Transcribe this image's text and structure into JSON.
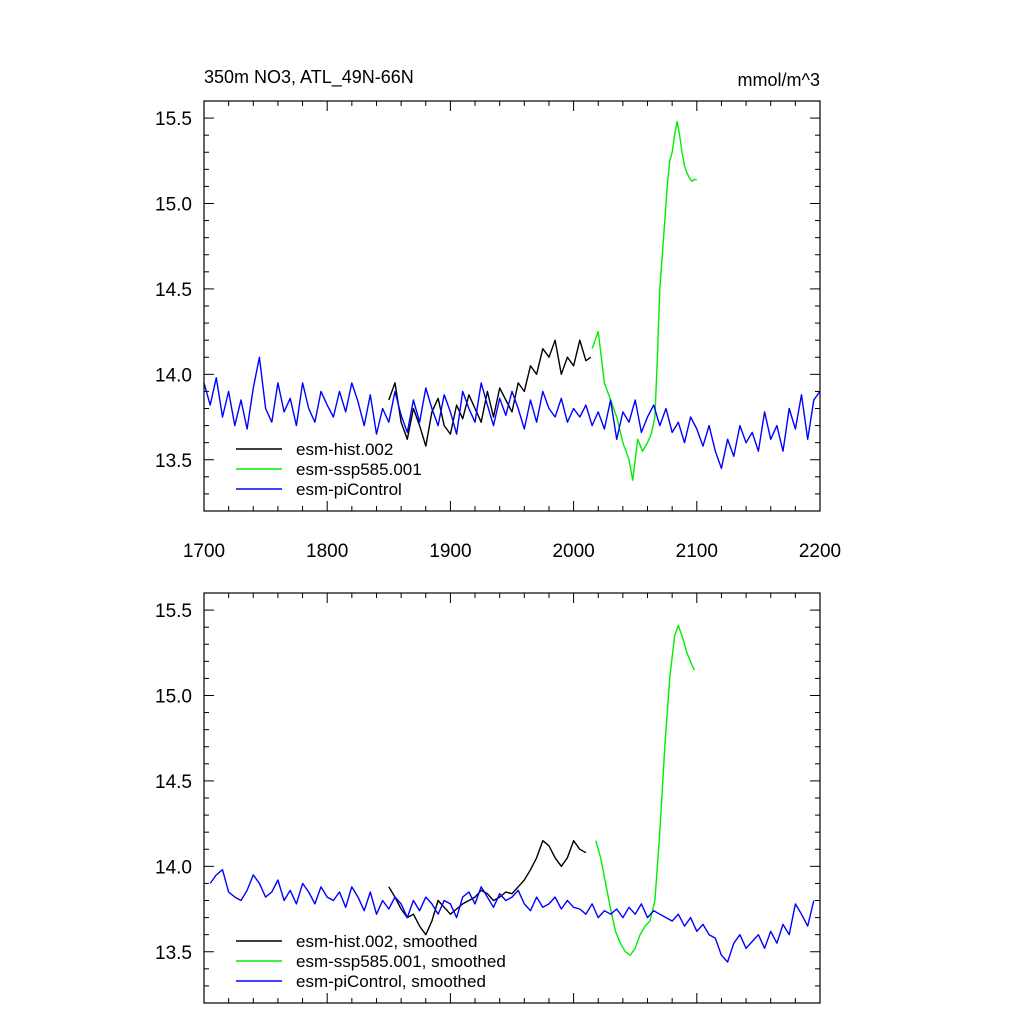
{
  "chart_data": [
    {
      "type": "line",
      "title": "350m NO3, ATL_49N-66N",
      "units": "mmol/m^3",
      "xlim": [
        1700,
        2200
      ],
      "ylim": [
        13.2,
        15.6
      ],
      "xticks": [
        1700,
        1800,
        1900,
        2000,
        2100,
        2200
      ],
      "xtick_labels": [
        "1700",
        "1800",
        "1900",
        "2000",
        "2100",
        "2200"
      ],
      "yticks": [
        13.5,
        14.0,
        14.5,
        15.0,
        15.5
      ],
      "ytick_labels": [
        "13.5",
        "14.0",
        "14.5",
        "15.0",
        "15.5"
      ],
      "legend_position": "bottom-left",
      "series": [
        {
          "name": "esm-hist.002",
          "color": "#000000",
          "x": [
            1850,
            1855,
            1860,
            1865,
            1870,
            1875,
            1880,
            1885,
            1890,
            1895,
            1900,
            1905,
            1910,
            1915,
            1920,
            1925,
            1930,
            1935,
            1940,
            1945,
            1950,
            1955,
            1960,
            1965,
            1970,
            1975,
            1980,
            1985,
            1990,
            1995,
            2000,
            2005,
            2010,
            2014
          ],
          "y": [
            13.85,
            13.95,
            13.72,
            13.62,
            13.8,
            13.7,
            13.58,
            13.78,
            13.86,
            13.7,
            13.65,
            13.82,
            13.74,
            13.88,
            13.8,
            13.72,
            13.9,
            13.75,
            13.92,
            13.85,
            13.78,
            13.95,
            13.9,
            14.05,
            14.0,
            14.15,
            14.1,
            14.2,
            14.0,
            14.1,
            14.05,
            14.2,
            14.08,
            14.1
          ]
        },
        {
          "name": "esm-ssp585.001",
          "color": "#00ee00",
          "x": [
            2015,
            2020,
            2025,
            2030,
            2035,
            2040,
            2045,
            2048,
            2052,
            2056,
            2060,
            2063,
            2066,
            2068,
            2070,
            2072,
            2074,
            2076,
            2078,
            2080,
            2082,
            2084,
            2086,
            2088,
            2090,
            2092,
            2094,
            2096,
            2098,
            2100
          ],
          "y": [
            14.15,
            14.25,
            13.95,
            13.85,
            13.75,
            13.6,
            13.5,
            13.38,
            13.62,
            13.55,
            13.6,
            13.65,
            13.75,
            14.1,
            14.5,
            14.7,
            14.9,
            15.1,
            15.25,
            15.3,
            15.4,
            15.48,
            15.4,
            15.3,
            15.22,
            15.18,
            15.15,
            15.13,
            15.14,
            15.14
          ]
        },
        {
          "name": "esm-piControl",
          "color": "#0000ff",
          "x": [
            1700,
            1705,
            1710,
            1715,
            1720,
            1725,
            1730,
            1735,
            1740,
            1745,
            1750,
            1755,
            1760,
            1765,
            1770,
            1775,
            1780,
            1785,
            1790,
            1795,
            1800,
            1805,
            1810,
            1815,
            1820,
            1825,
            1830,
            1835,
            1840,
            1845,
            1850,
            1855,
            1860,
            1865,
            1870,
            1875,
            1880,
            1885,
            1890,
            1895,
            1900,
            1905,
            1910,
            1915,
            1920,
            1925,
            1930,
            1935,
            1940,
            1945,
            1950,
            1955,
            1960,
            1965,
            1970,
            1975,
            1980,
            1985,
            1990,
            1995,
            2000,
            2005,
            2010,
            2015,
            2020,
            2025,
            2030,
            2035,
            2040,
            2045,
            2050,
            2055,
            2060,
            2065,
            2070,
            2075,
            2080,
            2085,
            2090,
            2095,
            2100,
            2105,
            2110,
            2115,
            2120,
            2125,
            2130,
            2135,
            2140,
            2145,
            2150,
            2155,
            2160,
            2165,
            2170,
            2175,
            2180,
            2185,
            2190,
            2195,
            2200
          ],
          "y": [
            13.95,
            13.82,
            13.98,
            13.75,
            13.9,
            13.7,
            13.85,
            13.68,
            13.92,
            14.1,
            13.8,
            13.72,
            13.95,
            13.78,
            13.86,
            13.7,
            13.95,
            13.8,
            13.72,
            13.9,
            13.82,
            13.75,
            13.9,
            13.78,
            13.95,
            13.84,
            13.7,
            13.88,
            13.65,
            13.8,
            13.72,
            13.9,
            13.76,
            13.66,
            13.85,
            13.72,
            13.92,
            13.8,
            13.7,
            13.88,
            13.78,
            13.65,
            13.9,
            13.8,
            13.72,
            13.95,
            13.82,
            13.7,
            13.86,
            13.76,
            13.9,
            13.8,
            13.68,
            13.85,
            13.72,
            13.9,
            13.8,
            13.75,
            13.86,
            13.72,
            13.8,
            13.75,
            13.82,
            13.7,
            13.78,
            13.68,
            13.85,
            13.62,
            13.78,
            13.72,
            13.85,
            13.66,
            13.75,
            13.82,
            13.7,
            13.8,
            13.66,
            13.72,
            13.6,
            13.75,
            13.68,
            13.58,
            13.7,
            13.55,
            13.45,
            13.62,
            13.52,
            13.7,
            13.6,
            13.66,
            13.55,
            13.78,
            13.62,
            13.7,
            13.55,
            13.8,
            13.68,
            13.88,
            13.62,
            13.85,
            13.9
          ]
        }
      ]
    },
    {
      "type": "line",
      "xlim": [
        1700,
        2200
      ],
      "ylim": [
        13.2,
        15.6
      ],
      "xticks": [
        1700,
        1800,
        1900,
        2000,
        2100,
        2200
      ],
      "yticks": [
        13.5,
        14.0,
        14.5,
        15.0,
        15.5
      ],
      "ytick_labels": [
        "13.5",
        "14.0",
        "14.5",
        "15.0",
        "15.5"
      ],
      "legend_position": "bottom-left",
      "series": [
        {
          "name": "esm-hist.002, smoothed",
          "color": "#000000",
          "x": [
            1850,
            1855,
            1860,
            1865,
            1870,
            1875,
            1880,
            1885,
            1890,
            1895,
            1900,
            1905,
            1910,
            1915,
            1920,
            1925,
            1930,
            1935,
            1940,
            1945,
            1950,
            1955,
            1960,
            1965,
            1970,
            1975,
            1980,
            1985,
            1990,
            1995,
            2000,
            2005,
            2010
          ],
          "y": [
            13.88,
            13.82,
            13.75,
            13.7,
            13.72,
            13.65,
            13.6,
            13.68,
            13.8,
            13.76,
            13.72,
            13.75,
            13.78,
            13.8,
            13.82,
            13.86,
            13.84,
            13.8,
            13.82,
            13.85,
            13.84,
            13.88,
            13.92,
            13.98,
            14.05,
            14.15,
            14.12,
            14.05,
            14.0,
            14.05,
            14.15,
            14.1,
            14.08
          ]
        },
        {
          "name": "esm-ssp585.001, smoothed",
          "color": "#00ee00",
          "x": [
            2018,
            2022,
            2026,
            2030,
            2034,
            2038,
            2042,
            2046,
            2050,
            2054,
            2058,
            2062,
            2066,
            2070,
            2074,
            2078,
            2082,
            2085,
            2088,
            2092,
            2096,
            2098
          ],
          "y": [
            14.15,
            14.05,
            13.9,
            13.75,
            13.62,
            13.55,
            13.5,
            13.48,
            13.52,
            13.6,
            13.65,
            13.68,
            13.8,
            14.2,
            14.7,
            15.1,
            15.35,
            15.41,
            15.35,
            15.25,
            15.18,
            15.15
          ]
        },
        {
          "name": "esm-piControl, smoothed",
          "color": "#0000ff",
          "x": [
            1705,
            1710,
            1715,
            1720,
            1725,
            1730,
            1735,
            1740,
            1745,
            1750,
            1755,
            1760,
            1765,
            1770,
            1775,
            1780,
            1785,
            1790,
            1795,
            1800,
            1805,
            1810,
            1815,
            1820,
            1825,
            1830,
            1835,
            1840,
            1845,
            1850,
            1855,
            1860,
            1865,
            1870,
            1875,
            1880,
            1885,
            1890,
            1895,
            1900,
            1905,
            1910,
            1915,
            1920,
            1925,
            1930,
            1935,
            1940,
            1945,
            1950,
            1955,
            1960,
            1965,
            1970,
            1975,
            1980,
            1985,
            1990,
            1995,
            2000,
            2005,
            2010,
            2015,
            2020,
            2025,
            2030,
            2035,
            2040,
            2045,
            2050,
            2055,
            2060,
            2065,
            2070,
            2075,
            2080,
            2085,
            2090,
            2095,
            2100,
            2105,
            2110,
            2115,
            2120,
            2125,
            2130,
            2135,
            2140,
            2145,
            2150,
            2155,
            2160,
            2165,
            2170,
            2175,
            2180,
            2185,
            2190,
            2195
          ],
          "y": [
            13.9,
            13.95,
            13.98,
            13.85,
            13.82,
            13.8,
            13.86,
            13.95,
            13.9,
            13.82,
            13.85,
            13.92,
            13.8,
            13.86,
            13.78,
            13.9,
            13.85,
            13.78,
            13.88,
            13.82,
            13.8,
            13.85,
            13.76,
            13.88,
            13.82,
            13.74,
            13.85,
            13.72,
            13.8,
            13.75,
            13.82,
            13.78,
            13.7,
            13.8,
            13.74,
            13.82,
            13.78,
            13.72,
            13.8,
            13.78,
            13.7,
            13.82,
            13.85,
            13.78,
            13.88,
            13.82,
            13.76,
            13.84,
            13.8,
            13.82,
            13.86,
            13.78,
            13.74,
            13.82,
            13.76,
            13.78,
            13.82,
            13.75,
            13.8,
            13.76,
            13.75,
            13.72,
            13.78,
            13.7,
            13.74,
            13.72,
            13.75,
            13.7,
            13.76,
            13.72,
            13.78,
            13.7,
            13.74,
            13.72,
            13.7,
            13.68,
            13.72,
            13.65,
            13.7,
            13.62,
            13.66,
            13.6,
            13.58,
            13.48,
            13.44,
            13.55,
            13.6,
            13.52,
            13.56,
            13.6,
            13.52,
            13.62,
            13.55,
            13.66,
            13.6,
            13.78,
            13.72,
            13.65,
            13.8
          ]
        }
      ]
    }
  ]
}
